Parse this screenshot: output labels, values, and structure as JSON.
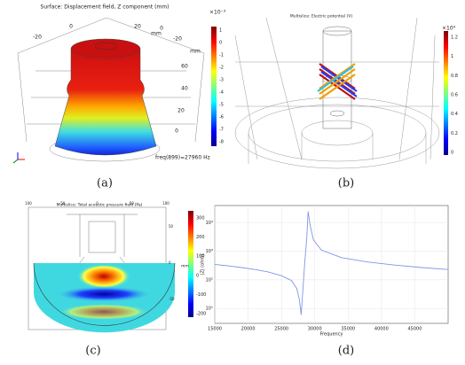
{
  "panels": {
    "a": {
      "caption": "(a)",
      "title": "Surface: Displacement field, Z component (mm)",
      "axis_labels": [
        "-20",
        "0",
        "20",
        "mm",
        "-20",
        "0",
        "60",
        "40",
        "20",
        "0",
        "mm"
      ],
      "frequency": "freq(899)=27960 Hz",
      "colorbar": {
        "exponent": "×10⁻³",
        "ticks": [
          1,
          0,
          -1,
          -2,
          -3,
          -4,
          -5,
          -6,
          -7,
          -8
        ]
      }
    },
    "b": {
      "caption": "(b)",
      "title": "Multislice: Electric potential (V)",
      "colorbar": {
        "exponent": "×10⁴",
        "ticks": [
          1.2,
          1,
          0.8,
          0.6,
          0.4,
          0.2,
          0
        ]
      }
    },
    "c": {
      "caption": "(c)",
      "title": "Multislice: Total acoustic pressure field (Pa)",
      "top_labels": [
        "100",
        "50",
        "0",
        "50",
        "100"
      ],
      "side_labels": [
        "50",
        "0",
        "-50"
      ],
      "unit": "mm",
      "colorbar": {
        "ticks": [
          300,
          200,
          100,
          0,
          -100,
          -200
        ]
      }
    },
    "d": {
      "caption": "(d)",
      "plot": {
        "type": "line",
        "xlabel": "Frequency",
        "ylabel": "|Z| (ohm)",
        "color": "#8096e6",
        "log_y": true,
        "x": [
          15000,
          17000,
          19000,
          21000,
          23000,
          25000,
          26500,
          27300,
          27700,
          27960,
          28200,
          28500,
          28800,
          29000,
          29300,
          29800,
          31000,
          34000,
          38000,
          42000,
          46000,
          50000
        ],
        "values": [
          350,
          310,
          270,
          230,
          190,
          140,
          95,
          50,
          20,
          6,
          40,
          400,
          3000,
          25000,
          8000,
          2500,
          1100,
          600,
          420,
          330,
          270,
          230
        ],
        "xlim": [
          15000,
          50000
        ],
        "xticks": [
          15000,
          20000,
          25000,
          30000,
          35000,
          40000,
          45000
        ],
        "ylim": [
          3,
          40000
        ],
        "yticks": [
          {
            "value": 10,
            "label": "10¹"
          },
          {
            "value": 100,
            "label": "10²"
          },
          {
            "value": 1000,
            "label": "10³"
          },
          {
            "value": 10000,
            "label": "10⁴"
          }
        ]
      }
    }
  }
}
